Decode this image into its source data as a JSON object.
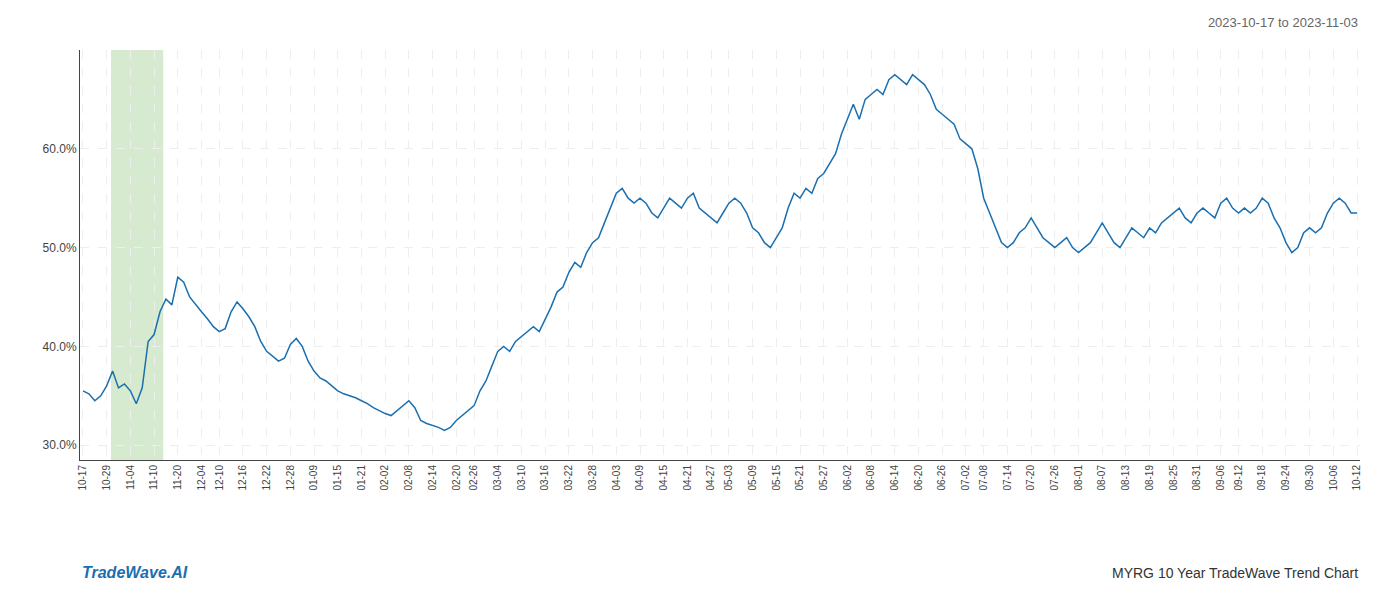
{
  "chart_data": {
    "type": "line",
    "title": "2023-10-17 to 2023-11-03",
    "annotations": [
      {
        "text": "TradeWave.AI",
        "color": "#1a6faf"
      },
      {
        "text": "MYRG 10 Year TradeWave Trend Chart",
        "color": "#333333"
      }
    ],
    "color": "#1a6faf",
    "grid": true,
    "highlight": {
      "x": [
        4.73,
        13.545
      ],
      "color": "#d6ead0"
    },
    "ylim": [
      28.5,
      70.0
    ],
    "yticks": [
      {
        "value": 30.0,
        "label": "30.0%"
      },
      {
        "value": 40.0,
        "label": "40.0%"
      },
      {
        "value": 50.0,
        "label": "50.0%"
      },
      {
        "value": 60.0,
        "label": "60.0%"
      }
    ],
    "categories": [
      "10-17",
      null,
      null,
      null,
      "10-29",
      null,
      null,
      null,
      "11-04",
      null,
      null,
      null,
      "11-10",
      null,
      null,
      null,
      "11-20",
      null,
      null,
      null,
      "12-04",
      null,
      null,
      "12-10",
      null,
      null,
      null,
      "12-16",
      null,
      null,
      null,
      "12-22",
      null,
      null,
      null,
      "12-28",
      null,
      null,
      null,
      "01-09",
      null,
      null,
      null,
      "01-15",
      null,
      null,
      null,
      "01-21",
      null,
      null,
      null,
      "02-02",
      null,
      null,
      null,
      "02-08",
      null,
      null,
      null,
      "02-14",
      null,
      null,
      null,
      "02-20",
      null,
      null,
      "02-26",
      null,
      null,
      null,
      "03-04",
      null,
      null,
      null,
      "03-10",
      null,
      null,
      null,
      "03-16",
      null,
      null,
      null,
      "03-22",
      null,
      null,
      null,
      "03-28",
      null,
      null,
      null,
      "04-03",
      null,
      null,
      null,
      "04-09",
      null,
      null,
      null,
      "04-15",
      null,
      null,
      null,
      "04-21",
      null,
      null,
      null,
      "04-27",
      null,
      null,
      "05-03",
      null,
      null,
      null,
      "05-09",
      null,
      null,
      null,
      "05-15",
      null,
      null,
      null,
      "05-21",
      null,
      null,
      null,
      "05-27",
      null,
      null,
      null,
      "06-02",
      null,
      null,
      null,
      "06-08",
      null,
      null,
      null,
      "06-14",
      null,
      null,
      null,
      "06-20",
      null,
      null,
      null,
      "06-26",
      null,
      null,
      null,
      "07-02",
      null,
      null,
      "07-08",
      null,
      null,
      null,
      "07-14",
      null,
      null,
      null,
      "07-20",
      null,
      null,
      null,
      "07-26",
      null,
      null,
      null,
      "08-01",
      null,
      null,
      null,
      "08-07",
      null,
      null,
      null,
      "08-13",
      null,
      null,
      null,
      "08-19",
      null,
      null,
      null,
      "08-25",
      null,
      null,
      null,
      "08-31",
      null,
      null,
      null,
      "09-06",
      null,
      null,
      "09-12",
      null,
      null,
      null,
      "09-18",
      null,
      null,
      null,
      "09-24",
      null,
      null,
      null,
      "09-30",
      null,
      null,
      null,
      "10-06",
      null,
      null,
      null,
      "10-12"
    ],
    "values": [
      35.5,
      35.2,
      34.5,
      35.0,
      36.0,
      37.5,
      35.8,
      36.2,
      35.5,
      34.2,
      35.8,
      40.5,
      41.2,
      43.5,
      44.8,
      44.2,
      47.0,
      46.5,
      45.0,
      44.2,
      43.5,
      42.8,
      42.0,
      41.5,
      41.8,
      43.5,
      44.5,
      43.8,
      43.0,
      42.0,
      40.5,
      39.5,
      39.0,
      38.5,
      38.8,
      40.2,
      40.8,
      40.0,
      38.5,
      37.5,
      36.8,
      36.5,
      36.0,
      35.5,
      35.2,
      35.0,
      34.8,
      34.5,
      34.2,
      33.8,
      33.5,
      33.2,
      33.0,
      33.5,
      34.0,
      34.5,
      33.8,
      32.5,
      32.2,
      32.0,
      31.8,
      31.5,
      31.8,
      32.5,
      33.0,
      33.5,
      34.0,
      35.5,
      36.5,
      38.0,
      39.5,
      40.0,
      39.5,
      40.5,
      41.0,
      41.5,
      42.0,
      41.5,
      42.8,
      44.0,
      45.5,
      46.0,
      47.5,
      48.5,
      48.0,
      49.5,
      50.5,
      51.0,
      52.5,
      54.0,
      55.5,
      56.0,
      55.0,
      54.5,
      55.0,
      54.5,
      53.5,
      53.0,
      54.0,
      55.0,
      54.5,
      54.0,
      55.0,
      55.5,
      54.0,
      53.5,
      53.0,
      52.5,
      53.5,
      54.5,
      55.0,
      54.5,
      53.5,
      52.0,
      51.5,
      50.5,
      50.0,
      51.0,
      52.0,
      54.0,
      55.5,
      55.0,
      56.0,
      55.5,
      57.0,
      57.5,
      58.5,
      59.5,
      61.5,
      63.0,
      64.5,
      63.0,
      65.0,
      65.5,
      66.0,
      65.5,
      67.0,
      67.5,
      67.0,
      66.5,
      67.5,
      67.0,
      66.5,
      65.5,
      64.0,
      63.5,
      63.0,
      62.5,
      61.0,
      60.5,
      60.0,
      58.0,
      55.0,
      53.5,
      52.0,
      50.5,
      50.0,
      50.5,
      51.5,
      52.0,
      53.0,
      52.0,
      51.0,
      50.5,
      50.0,
      50.5,
      51.0,
      50.0,
      49.5,
      50.0,
      50.5,
      51.5,
      52.5,
      51.5,
      50.5,
      50.0,
      51.0,
      52.0,
      51.5,
      51.0,
      52.0,
      51.5,
      52.5,
      53.0,
      53.5,
      54.0,
      53.0,
      52.5,
      53.5,
      54.0,
      53.5,
      53.0,
      54.5,
      55.0,
      54.0,
      53.5,
      54.0,
      53.5,
      54.0,
      55.0,
      54.5,
      53.0,
      52.0,
      50.5,
      49.5,
      50.0,
      51.5,
      52.0,
      51.5,
      52.0,
      53.5,
      54.5,
      55.0,
      54.5,
      53.5,
      53.5
    ]
  }
}
